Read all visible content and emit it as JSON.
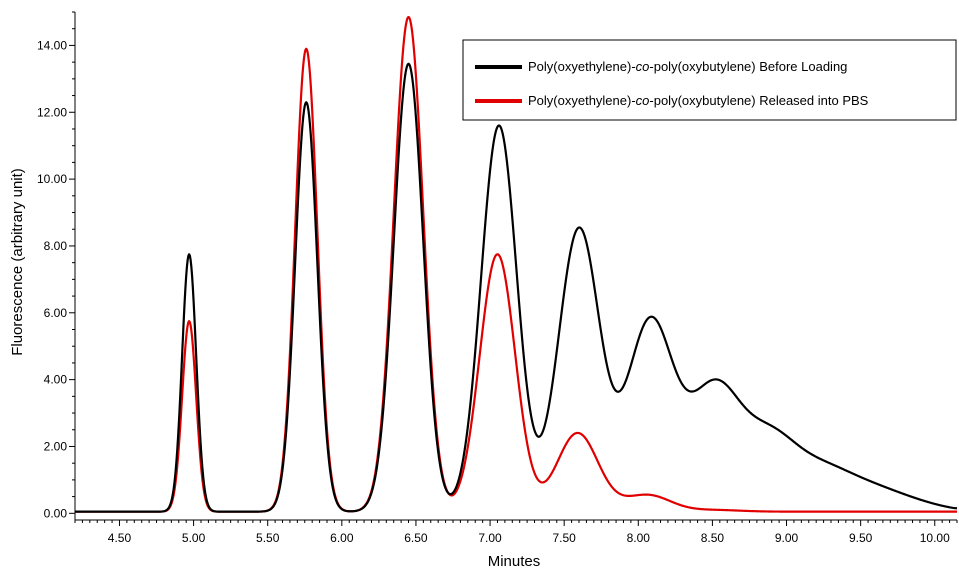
{
  "chart_data": {
    "type": "line",
    "xlabel": "Minutes",
    "ylabel": "Fluorescence (arbitrary unit)",
    "xlim": [
      4.2,
      10.15
    ],
    "ylim": [
      -0.2,
      15.0
    ],
    "x_ticks": [
      "4.50",
      "5.00",
      "5.50",
      "6.00",
      "6.50",
      "7.00",
      "7.50",
      "8.00",
      "8.50",
      "9.00",
      "9.50",
      "10.00"
    ],
    "y_ticks": [
      "0.00",
      "2.00",
      "4.00",
      "6.00",
      "8.00",
      "10.00",
      "12.00",
      "14.00"
    ],
    "legend_position": "top-right",
    "series": [
      {
        "name_parts": [
          "Poly(oxyethylene)-",
          "co",
          "-poly(oxybutylene) Before Loading"
        ],
        "color": "#000000",
        "baseline": 0.05,
        "peaks": [
          {
            "x": 4.97,
            "y": 7.75
          },
          {
            "x": 5.76,
            "y": 12.3
          },
          {
            "x": 6.45,
            "y": 13.45
          },
          {
            "x": 7.06,
            "y": 11.6
          },
          {
            "x": 7.6,
            "y": 8.5
          },
          {
            "x": 8.08,
            "y": 5.7
          },
          {
            "x": 8.51,
            "y": 3.6
          },
          {
            "x": 8.88,
            "y": 2.1
          },
          {
            "x": 9.23,
            "y": 1.1
          },
          {
            "x": 9.54,
            "y": 0.6
          },
          {
            "x": 9.83,
            "y": 0.3
          }
        ],
        "tail": [
          {
            "x": 10.0,
            "y": 0.2
          },
          {
            "x": 10.15,
            "y": 0.15
          }
        ]
      },
      {
        "name_parts": [
          "Poly(oxyethylene)-",
          "co",
          "-poly(oxybutylene) Released into PBS"
        ],
        "color": "#e00000",
        "baseline": 0.05,
        "peaks": [
          {
            "x": 4.97,
            "y": 5.75
          },
          {
            "x": 5.76,
            "y": 13.9
          },
          {
            "x": 6.45,
            "y": 14.85
          },
          {
            "x": 7.05,
            "y": 7.75
          },
          {
            "x": 7.59,
            "y": 2.4
          },
          {
            "x": 8.06,
            "y": 0.55
          },
          {
            "x": 8.51,
            "y": 0.1
          }
        ],
        "tail": [
          {
            "x": 10.15,
            "y": 0.0
          }
        ]
      }
    ]
  }
}
